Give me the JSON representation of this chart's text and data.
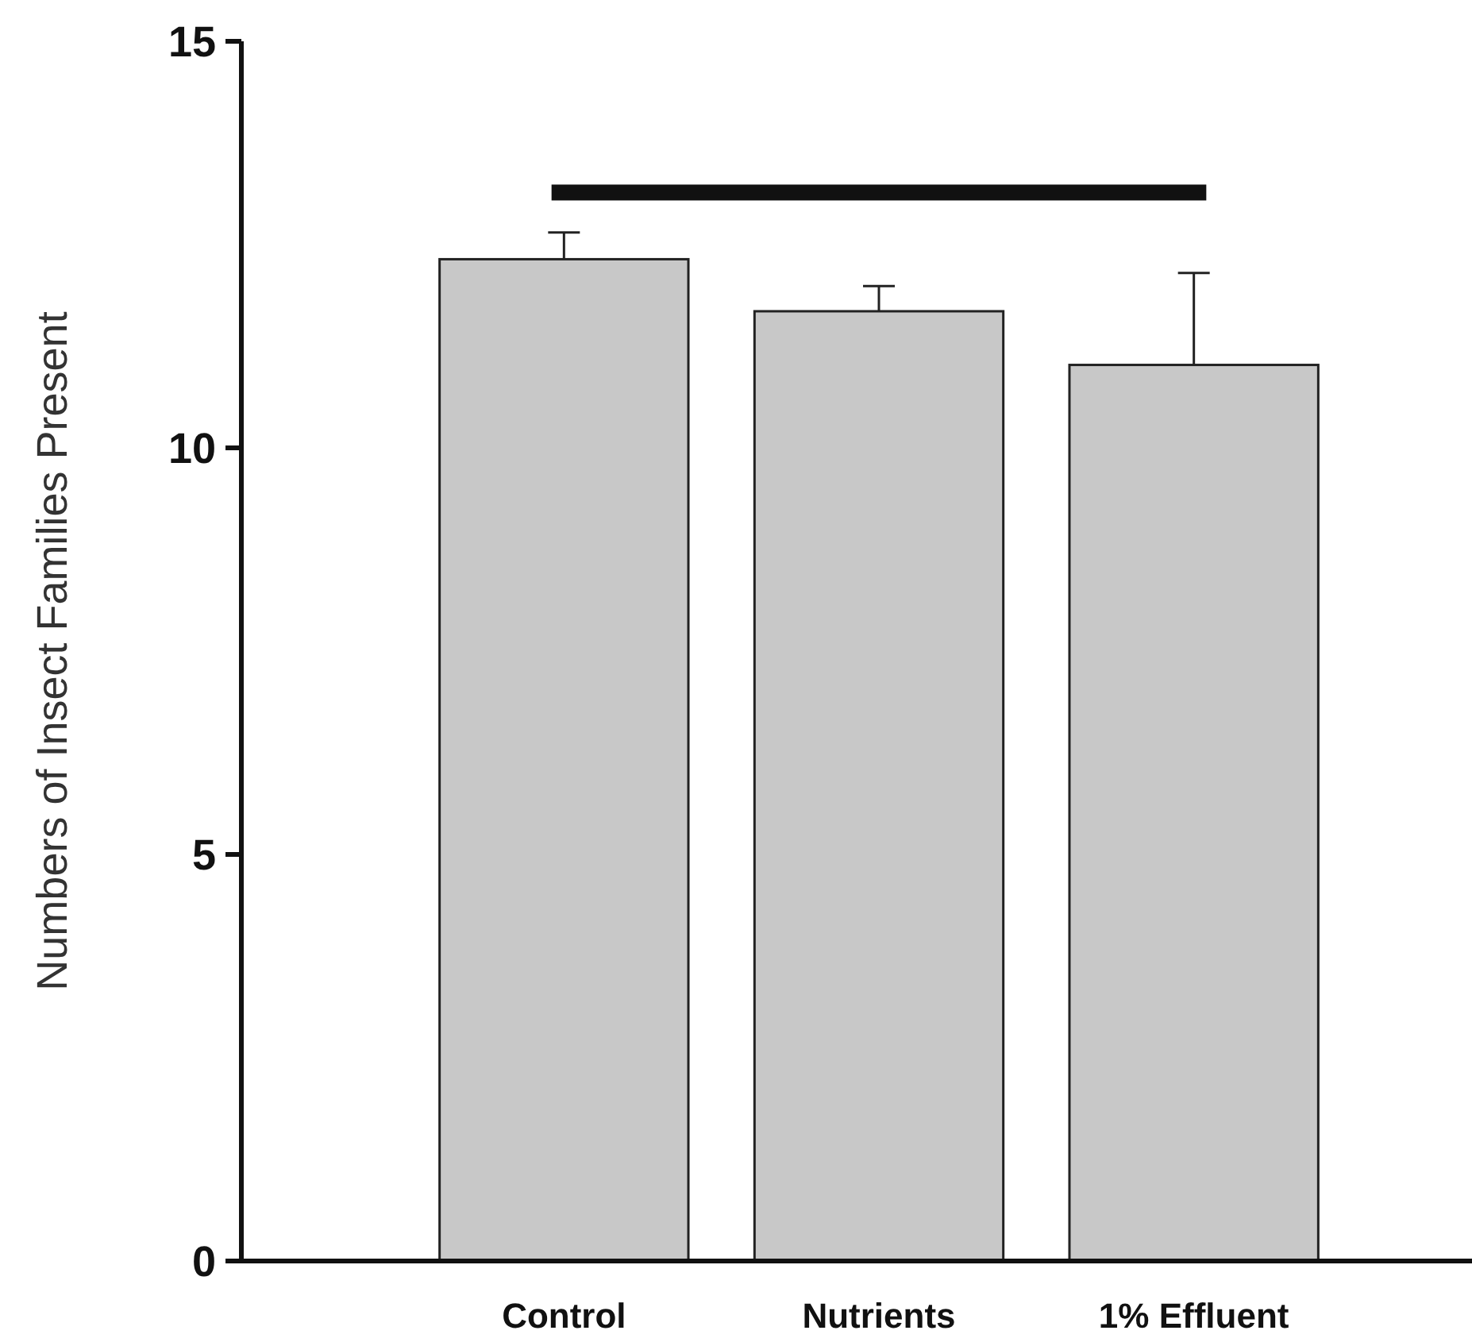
{
  "chart_data": {
    "type": "bar",
    "ylabel": "Numbers of Insect Families Present",
    "categories": [
      "Control",
      "Nutrients",
      "1% Effluent"
    ],
    "values": [
      12.32,
      11.68,
      11.02
    ],
    "errors": [
      [
        12.32,
        12.65
      ],
      [
        11.68,
        11.99
      ],
      [
        11.02,
        12.15
      ]
    ],
    "color": "#c8c8c8",
    "ylim": [
      0,
      15
    ],
    "yticks": [
      0,
      5,
      10,
      15
    ],
    "grid": false
  }
}
